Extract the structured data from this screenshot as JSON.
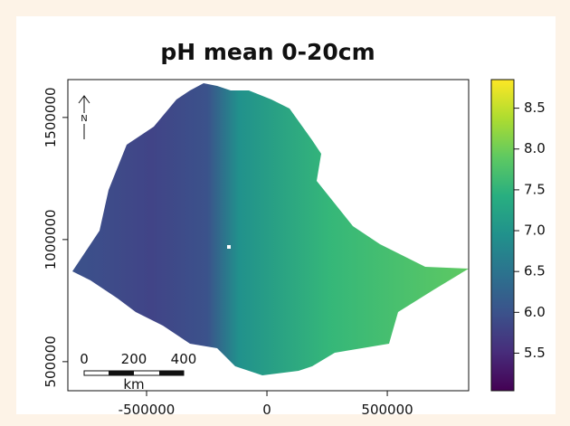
{
  "chart_data": {
    "type": "raster-map",
    "title": "pH mean 0-20cm",
    "xlim": [
      -827000,
      838000
    ],
    "ylim": [
      381000,
      1655000
    ],
    "xticks": [
      -500000,
      0,
      500000
    ],
    "yticks": [
      500000,
      1000000,
      1500000
    ],
    "colorbar": {
      "lim": [
        5.04,
        8.85
      ],
      "ticks": [
        {
          "value": 5.5,
          "label": "5.5"
        },
        {
          "value": 6,
          "label": "6.0"
        },
        {
          "value": 6.5,
          "label": "6.5"
        },
        {
          "value": 7,
          "label": "7.0"
        },
        {
          "value": 7.5,
          "label": "7.5"
        },
        {
          "value": 8,
          "label": "8.0"
        },
        {
          "value": 8.5,
          "label": "8.5"
        }
      ],
      "colors": [
        "#440154",
        "#472d7b",
        "#3b528b",
        "#2c728e",
        "#21918c",
        "#28ae80",
        "#5ec962",
        "#addc30",
        "#fde725"
      ]
    },
    "north": "N",
    "scale_bar": {
      "ticks": [
        0,
        200,
        400
      ],
      "unit": "km"
    }
  }
}
